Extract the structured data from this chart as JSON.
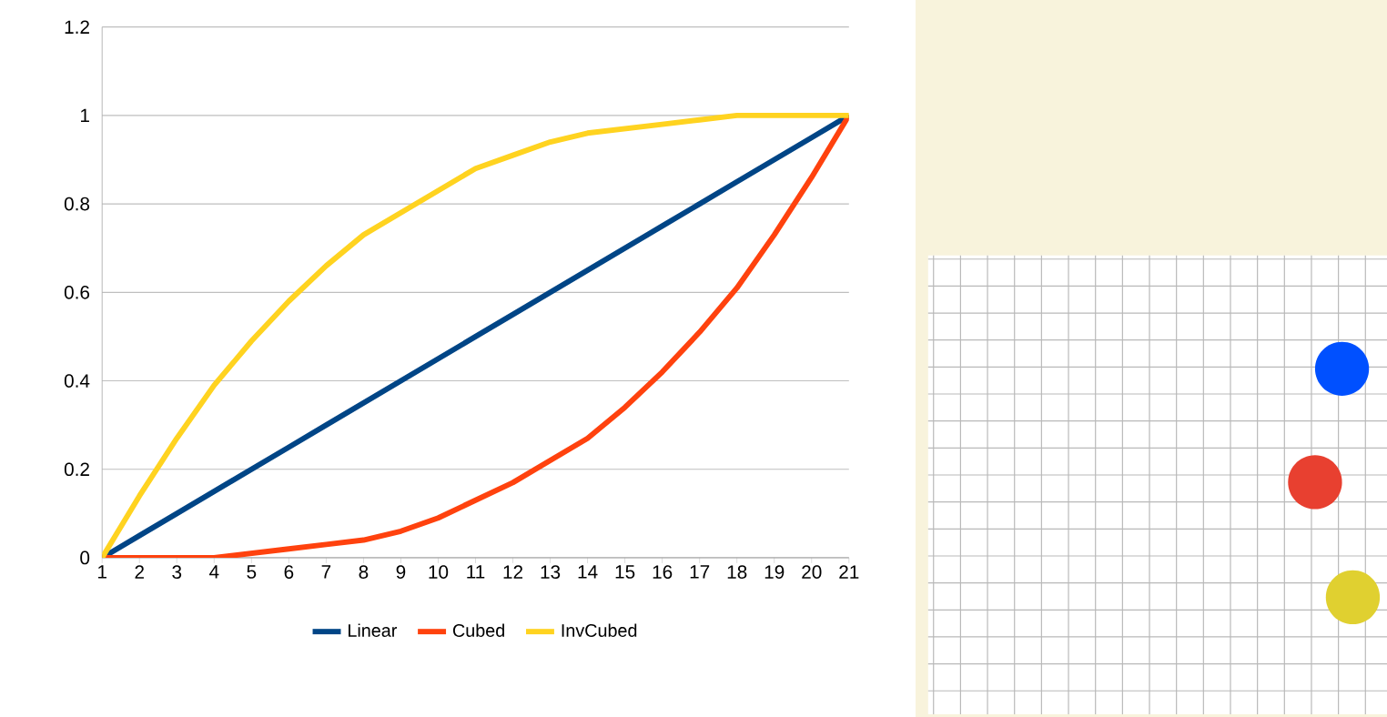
{
  "chart_data": {
    "type": "line",
    "categories": [
      "1",
      "2",
      "3",
      "4",
      "5",
      "6",
      "7",
      "8",
      "9",
      "10",
      "11",
      "12",
      "13",
      "14",
      "15",
      "16",
      "17",
      "18",
      "19",
      "20",
      "21"
    ],
    "series": [
      {
        "name": "Linear",
        "color": "#004586",
        "values": [
          0,
          0.05,
          0.1,
          0.15,
          0.2,
          0.25,
          0.3,
          0.35,
          0.4,
          0.45,
          0.5,
          0.55,
          0.6,
          0.65,
          0.7,
          0.75,
          0.8,
          0.85,
          0.9,
          0.95,
          1
        ]
      },
      {
        "name": "Cubed",
        "color": "#ff420e",
        "values": [
          0,
          0,
          0,
          0,
          0.01,
          0.02,
          0.03,
          0.04,
          0.06,
          0.09,
          0.13,
          0.17,
          0.22,
          0.27,
          0.34,
          0.42,
          0.51,
          0.61,
          0.73,
          0.86,
          1
        ]
      },
      {
        "name": "InvCubed",
        "color": "#ffd320",
        "values": [
          0,
          0.14,
          0.27,
          0.39,
          0.49,
          0.58,
          0.66,
          0.73,
          0.78,
          0.83,
          0.88,
          0.91,
          0.94,
          0.96,
          0.97,
          0.98,
          0.99,
          1,
          1,
          1,
          1
        ]
      }
    ],
    "ylim": [
      0,
      1.2
    ],
    "yticks": [
      0,
      0.2,
      0.4,
      0.6,
      0.8,
      1,
      1.2
    ],
    "grid": "y",
    "legend": "bottom",
    "marker": "none",
    "line_style": "solid"
  }
}
